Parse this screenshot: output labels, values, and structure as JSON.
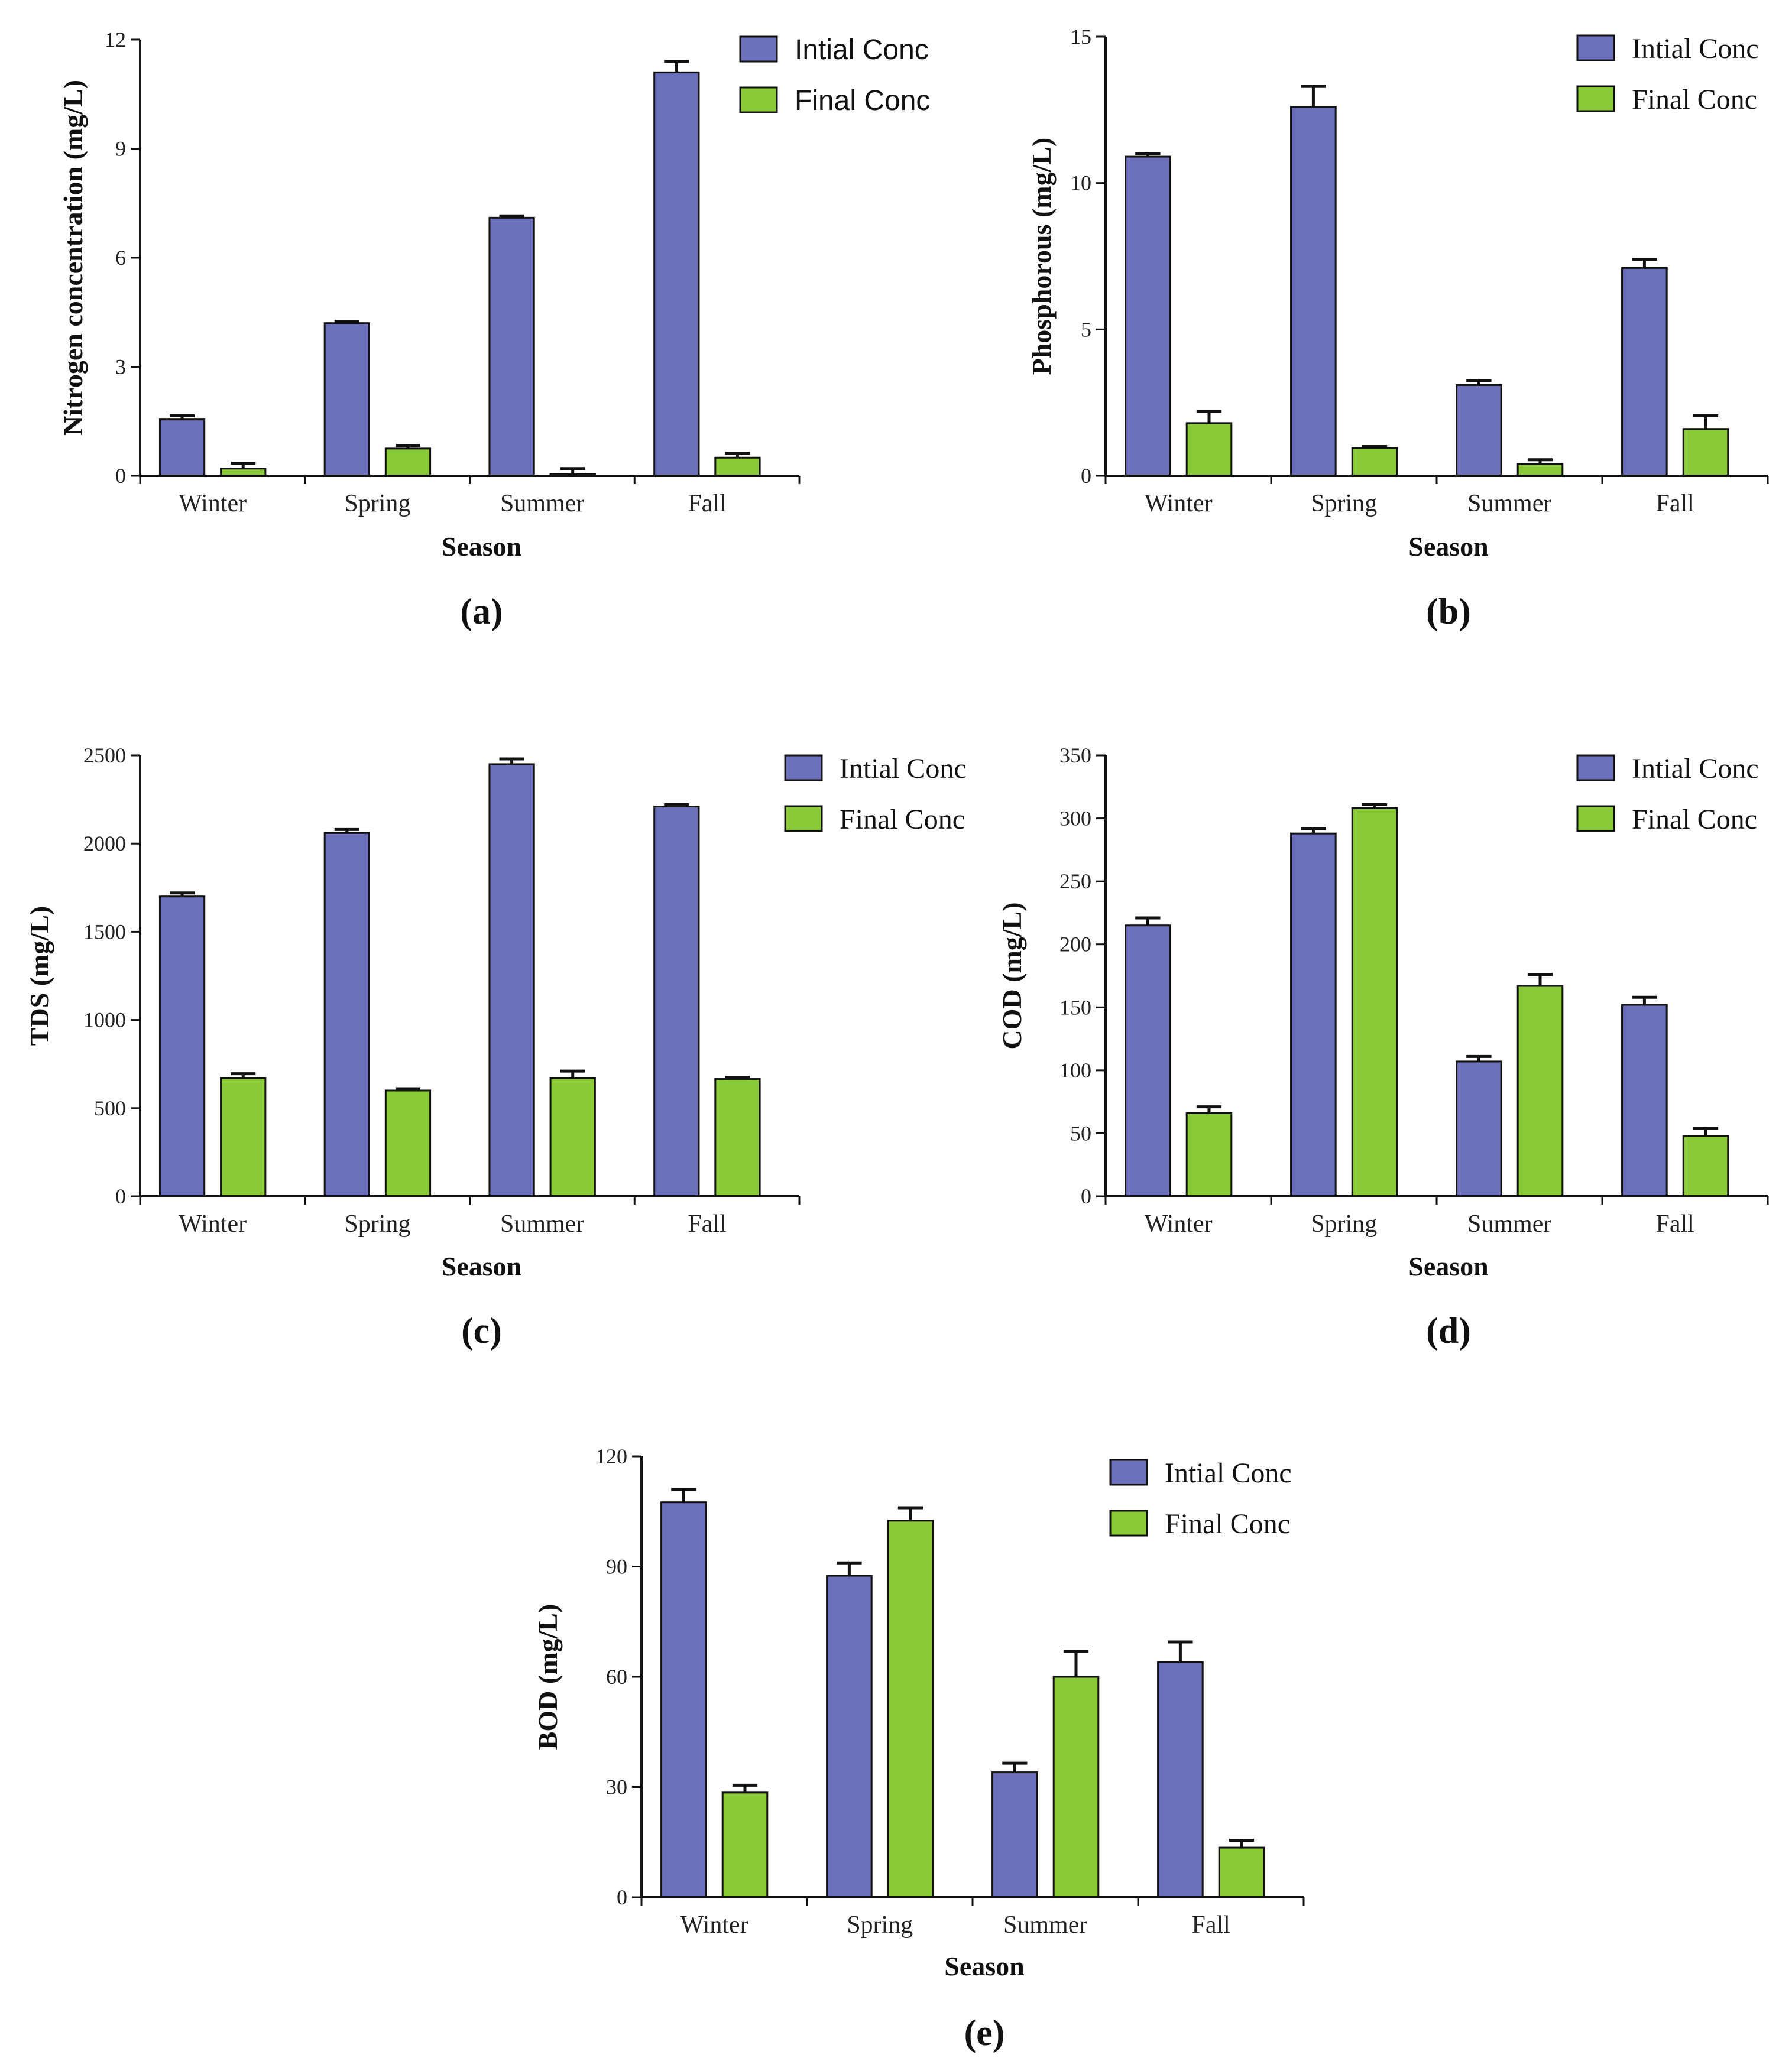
{
  "chart_data": [
    {
      "type": "bar",
      "panel_label": "(a)",
      "categories": [
        "Winter",
        "Spring",
        "Summer",
        "Fall"
      ],
      "series": [
        {
          "name": "Intial Conc",
          "color": "#6c6fb9",
          "values": [
            1.55,
            4.2,
            7.1,
            11.1
          ],
          "errors": [
            0.1,
            0.05,
            0.05,
            0.3
          ]
        },
        {
          "name": "Final Conc",
          "color": "#8bcb3a",
          "values": [
            0.2,
            0.75,
            0.05,
            0.5
          ],
          "errors": [
            0.15,
            0.08,
            0.15,
            0.12
          ]
        }
      ],
      "xlabel": "Season",
      "ylabel": "Nitrogen concentration (mg/L)",
      "ylim": [
        0,
        12
      ],
      "yticks": [
        0,
        3,
        6,
        9,
        12
      ],
      "legend_position": "top-right",
      "legend_font": "sans"
    },
    {
      "type": "bar",
      "panel_label": "(b)",
      "categories": [
        "Winter",
        "Spring",
        "Summer",
        "Fall"
      ],
      "series": [
        {
          "name": "Intial Conc",
          "color": "#6c6fb9",
          "values": [
            10.9,
            12.6,
            3.1,
            7.1
          ],
          "errors": [
            0.1,
            0.7,
            0.15,
            0.3
          ]
        },
        {
          "name": "Final Conc",
          "color": "#8bcb3a",
          "values": [
            1.8,
            0.95,
            0.4,
            1.6
          ],
          "errors": [
            0.4,
            0.05,
            0.15,
            0.45
          ]
        }
      ],
      "xlabel": "Season",
      "ylabel": "Phosphorous (mg/L)",
      "ylim": [
        0,
        15
      ],
      "yticks": [
        0,
        5,
        10,
        15
      ],
      "legend_position": "top-right",
      "legend_font": "serif"
    },
    {
      "type": "bar",
      "panel_label": "(c)",
      "categories": [
        "Winter",
        "Spring",
        "Summer",
        "Fall"
      ],
      "series": [
        {
          "name": "Intial Conc",
          "color": "#6c6fb9",
          "values": [
            1700,
            2060,
            2450,
            2210
          ],
          "errors": [
            20,
            20,
            30,
            10
          ]
        },
        {
          "name": "Final Conc",
          "color": "#8bcb3a",
          "values": [
            670,
            600,
            670,
            665
          ],
          "errors": [
            25,
            10,
            40,
            10
          ]
        }
      ],
      "xlabel": "Season",
      "ylabel": "TDS (mg/L)",
      "ylim": [
        0,
        2500
      ],
      "yticks": [
        0,
        500,
        1000,
        1500,
        2000,
        2500
      ],
      "legend_position": "top-right",
      "legend_font": "serif"
    },
    {
      "type": "bar",
      "panel_label": "(d)",
      "categories": [
        "Winter",
        "Spring",
        "Summer",
        "Fall"
      ],
      "series": [
        {
          "name": "Intial Conc",
          "color": "#6c6fb9",
          "values": [
            215,
            288,
            107,
            152
          ],
          "errors": [
            6,
            4,
            4,
            6
          ]
        },
        {
          "name": "Final Conc",
          "color": "#8bcb3a",
          "values": [
            66,
            308,
            167,
            48
          ],
          "errors": [
            5,
            3,
            9,
            6
          ]
        }
      ],
      "xlabel": "Season",
      "ylabel": "COD (mg/L)",
      "ylim": [
        0,
        350
      ],
      "yticks": [
        0,
        50,
        100,
        150,
        200,
        250,
        300,
        350
      ],
      "legend_position": "top-right",
      "legend_font": "serif"
    },
    {
      "type": "bar",
      "panel_label": "(e)",
      "categories": [
        "Winter",
        "Spring",
        "Summer",
        "Fall"
      ],
      "series": [
        {
          "name": "Intial Conc",
          "color": "#6c6fb9",
          "values": [
            107.5,
            87.5,
            34,
            64
          ],
          "errors": [
            3.5,
            3.5,
            2.5,
            5.5
          ]
        },
        {
          "name": "Final Conc",
          "color": "#8bcb3a",
          "values": [
            28.5,
            102.5,
            60,
            13.5
          ],
          "errors": [
            2,
            3.5,
            7,
            2
          ]
        }
      ],
      "xlabel": "Season",
      "ylabel": "BOD (mg/L)",
      "ylim": [
        0,
        120
      ],
      "yticks": [
        0,
        30,
        60,
        90,
        120
      ],
      "legend_position": "top-right",
      "legend_font": "serif"
    }
  ]
}
